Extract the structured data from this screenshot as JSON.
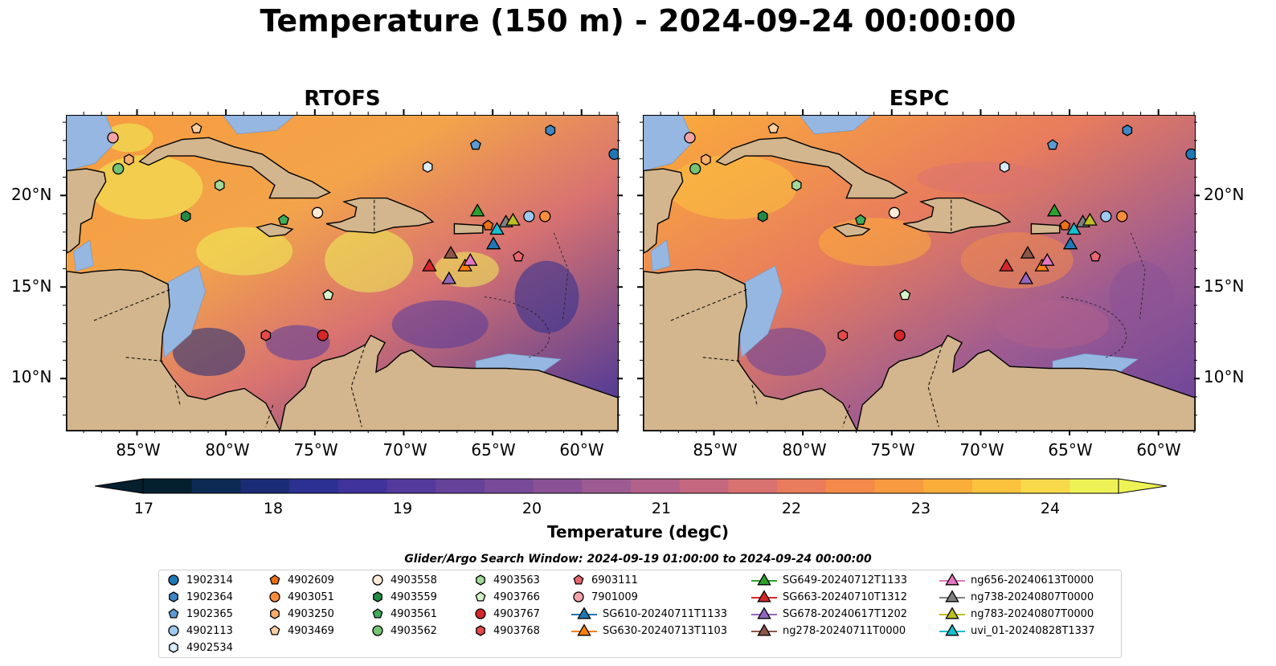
{
  "title": "Temperature (150 m) - 2024-09-24 00:00:00",
  "panels": [
    {
      "title": "RTOFS"
    },
    {
      "title": "ESPC"
    }
  ],
  "lat_labels": [
    "20°N",
    "15°N",
    "10°N"
  ],
  "lon_labels": [
    "85°W",
    "80°W",
    "75°W",
    "70°W",
    "65°W",
    "60°W"
  ],
  "colorbar": {
    "label": "Temperature (degC)",
    "min": 17,
    "max": 24.5,
    "ticks": [
      "17",
      "18",
      "19",
      "20",
      "21",
      "22",
      "23",
      "24"
    ],
    "colors": [
      "#04202f",
      "#0d2a55",
      "#1b2c76",
      "#2b3091",
      "#40339b",
      "#533a9c",
      "#66429a",
      "#784a98",
      "#8a5296",
      "#9d5b92",
      "#b1618a",
      "#c5687f",
      "#d87271",
      "#e87c5d",
      "#f38a4a",
      "#f89b40",
      "#fbad3a",
      "#fcc23e",
      "#f7d94a",
      "#eef256"
    ]
  },
  "search_window": "Glider/Argo Search Window: 2024-09-19 01:00:00 to 2024-09-24 00:00:00",
  "legend": [
    {
      "label": "1902314",
      "marker": "circle",
      "color": "#1f77b4",
      "col": 0,
      "row": 0
    },
    {
      "label": "1902364",
      "marker": "hexagon",
      "color": "#3f86c4",
      "col": 0,
      "row": 1
    },
    {
      "label": "1902365",
      "marker": "pentagon",
      "color": "#5c9bd3",
      "col": 0,
      "row": 2
    },
    {
      "label": "4902113",
      "marker": "circle",
      "color": "#9fc9ef",
      "col": 0,
      "row": 3
    },
    {
      "label": "4902534",
      "marker": "hexagon",
      "color": "#d8ecfb",
      "col": 0,
      "row": 4
    },
    {
      "label": "4902609",
      "marker": "pentagon",
      "color": "#ec7014",
      "col": 1,
      "row": 0
    },
    {
      "label": "4903051",
      "marker": "circle",
      "color": "#fd8d3c",
      "col": 1,
      "row": 1
    },
    {
      "label": "4903250",
      "marker": "hexagon",
      "color": "#fdae6b",
      "col": 1,
      "row": 2
    },
    {
      "label": "4903469",
      "marker": "pentagon",
      "color": "#fdd0a2",
      "col": 1,
      "row": 3
    },
    {
      "label": "4903558",
      "marker": "circle",
      "color": "#feead8",
      "col": 2,
      "row": 0
    },
    {
      "label": "4903559",
      "marker": "hexagon",
      "color": "#238b45",
      "col": 2,
      "row": 1
    },
    {
      "label": "4903561",
      "marker": "pentagon",
      "color": "#41ab5d",
      "col": 2,
      "row": 2
    },
    {
      "label": "4903562",
      "marker": "circle",
      "color": "#74c476",
      "col": 2,
      "row": 3
    },
    {
      "label": "4903563",
      "marker": "hexagon",
      "color": "#a1d99b",
      "col": 3,
      "row": 0
    },
    {
      "label": "4903766",
      "marker": "pentagon",
      "color": "#d4f4cc",
      "col": 3,
      "row": 1
    },
    {
      "label": "4903767",
      "marker": "circle",
      "color": "#d62728",
      "col": 3,
      "row": 2
    },
    {
      "label": "4903768",
      "marker": "hexagon",
      "color": "#e34a4a",
      "col": 3,
      "row": 3
    },
    {
      "label": "6903111",
      "marker": "pentagon",
      "color": "#e8676f",
      "col": 4,
      "row": 0
    },
    {
      "label": "7901009",
      "marker": "circle",
      "color": "#f4a3a8",
      "col": 4,
      "row": 1
    },
    {
      "label": "SG610-20240711T1133",
      "marker": "triangle",
      "color": "#1f77b4",
      "col": 4,
      "row": 2
    },
    {
      "label": "SG630-20240713T1103",
      "marker": "triangle",
      "color": "#ff7f0e",
      "col": 4,
      "row": 3
    },
    {
      "label": "SG649-20240712T1133",
      "marker": "triangle",
      "color": "#2ca02c",
      "col": 5,
      "row": 0
    },
    {
      "label": "SG663-20240710T1312",
      "marker": "triangle",
      "color": "#d62728",
      "col": 5,
      "row": 1
    },
    {
      "label": "SG678-20240617T1202",
      "marker": "triangle",
      "color": "#9467bd",
      "col": 5,
      "row": 2
    },
    {
      "label": "ng278-20240711T0000",
      "marker": "triangle",
      "color": "#8c564b",
      "col": 5,
      "row": 3
    },
    {
      "label": "ng656-20240613T0000",
      "marker": "triangle",
      "color": "#e377c2",
      "col": 6,
      "row": 0
    },
    {
      "label": "ng738-20240807T0000",
      "marker": "triangle",
      "color": "#7f7f7f",
      "col": 6,
      "row": 1
    },
    {
      "label": "ng783-20240807T0000",
      "marker": "triangle",
      "color": "#bcbd22",
      "col": 6,
      "row": 2
    },
    {
      "label": "uvi_01-20240828T1337",
      "marker": "triangle",
      "color": "#17becf",
      "col": 6,
      "row": 3
    }
  ],
  "stations": [
    {
      "id": "1902314",
      "lon": -58.2,
      "lat": 22.3
    },
    {
      "id": "1902364",
      "lon": -61.8,
      "lat": 23.6
    },
    {
      "id": "1902365",
      "lon": -66.0,
      "lat": 22.8
    },
    {
      "id": "4902113",
      "lon": -63.0,
      "lat": 18.9
    },
    {
      "id": "4902534",
      "lon": -68.7,
      "lat": 21.6
    },
    {
      "id": "4902609",
      "lon": -65.3,
      "lat": 18.4
    },
    {
      "id": "4903051",
      "lon": -62.1,
      "lat": 18.9
    },
    {
      "id": "4903250",
      "lon": -85.5,
      "lat": 22.0
    },
    {
      "id": "4903469",
      "lon": -81.7,
      "lat": 23.7
    },
    {
      "id": "4903558",
      "lon": -74.9,
      "lat": 19.1
    },
    {
      "id": "4903559",
      "lon": -82.3,
      "lat": 18.9
    },
    {
      "id": "4903561",
      "lon": -76.8,
      "lat": 18.7
    },
    {
      "id": "4903562",
      "lon": -86.1,
      "lat": 21.5
    },
    {
      "id": "4903563",
      "lon": -80.4,
      "lat": 20.6
    },
    {
      "id": "4903766",
      "lon": -74.3,
      "lat": 14.6
    },
    {
      "id": "4903767",
      "lon": -74.6,
      "lat": 12.4
    },
    {
      "id": "4903768",
      "lon": -77.8,
      "lat": 12.4
    },
    {
      "id": "6903111",
      "lon": -63.6,
      "lat": 16.7
    },
    {
      "id": "7901009",
      "lon": -86.4,
      "lat": 23.2
    },
    {
      "id": "SG610-20240711T1133",
      "lon": -65.0,
      "lat": 17.4
    },
    {
      "id": "SG630-20240713T1103",
      "lon": -66.6,
      "lat": 16.2
    },
    {
      "id": "SG649-20240712T1133",
      "lon": -65.9,
      "lat": 19.2
    },
    {
      "id": "SG663-20240710T1312",
      "lon": -68.6,
      "lat": 16.2
    },
    {
      "id": "SG678-20240617T1202",
      "lon": -67.5,
      "lat": 15.5
    },
    {
      "id": "ng278-20240711T0000",
      "lon": -67.4,
      "lat": 16.9
    },
    {
      "id": "ng656-20240613T0000",
      "lon": -66.3,
      "lat": 16.5
    },
    {
      "id": "ng738-20240807T0000",
      "lon": -64.3,
      "lat": 18.6
    },
    {
      "id": "ng783-20240807T0000",
      "lon": -63.9,
      "lat": 18.7
    },
    {
      "id": "uvi_01-20240828T1337",
      "lon": -64.8,
      "lat": 18.2
    }
  ]
}
